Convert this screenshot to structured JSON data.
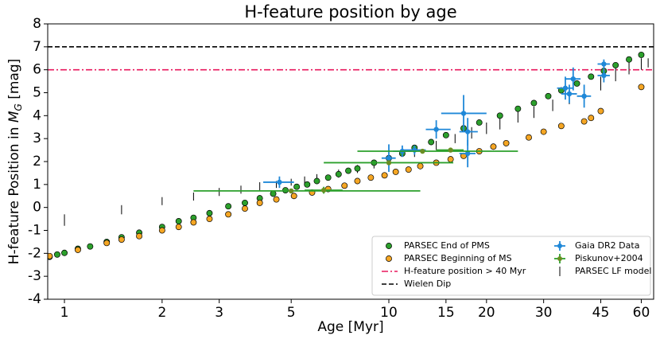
{
  "chart_data": {
    "type": "scatter",
    "title": "H-feature position by age",
    "xlabel": "Age [Myr]",
    "ylabel": {
      "text": "H-feature Position in ",
      "symbol": "M",
      "subscript": "G",
      "unit": " [mag]"
    },
    "xlog": true,
    "xlim": [
      0.888,
      65.5
    ],
    "ylim": [
      -4,
      8
    ],
    "xticks": [
      1,
      2,
      3,
      5,
      10,
      15,
      20,
      30,
      45,
      60
    ],
    "yticks": [
      -4,
      -3,
      -2,
      -1,
      0,
      1,
      2,
      3,
      4,
      5,
      6,
      7,
      8
    ],
    "legend": "lower right",
    "series": [
      {
        "name": "PARSEC End of PMS",
        "kind": "points",
        "color": "#2ca02c",
        "x": [
          0.9,
          0.95,
          1,
          1.1,
          1.2,
          1.35,
          1.5,
          1.7,
          2,
          2.25,
          2.5,
          2.8,
          3.2,
          3.6,
          4,
          4.4,
          4.8,
          5.2,
          5.6,
          6,
          6.5,
          7,
          7.5,
          8,
          9,
          10,
          11,
          12,
          13.5,
          15,
          17,
          19,
          22,
          25,
          28,
          31,
          34,
          38,
          42,
          46,
          50,
          55,
          60
        ],
        "values": [
          -2.15,
          -2.05,
          -1.98,
          -1.8,
          -1.7,
          -1.5,
          -1.3,
          -1.1,
          -0.85,
          -0.6,
          -0.45,
          -0.25,
          0.05,
          0.2,
          0.4,
          0.6,
          0.75,
          0.9,
          1.0,
          1.15,
          1.3,
          1.45,
          1.6,
          1.7,
          1.95,
          2.15,
          2.35,
          2.6,
          2.85,
          3.15,
          3.45,
          3.7,
          4.0,
          4.3,
          4.55,
          4.85,
          5.1,
          5.4,
          5.7,
          5.95,
          6.2,
          6.45,
          6.65
        ]
      },
      {
        "name": "PARSEC Beginning of MS",
        "kind": "points",
        "color": "#f5a623",
        "x": [
          0.9,
          1.1,
          1.35,
          1.5,
          1.7,
          2,
          2.25,
          2.5,
          2.8,
          3.2,
          3.6,
          4,
          4.5,
          5.1,
          5.8,
          6.5,
          7.3,
          8,
          8.8,
          9.7,
          10.5,
          11.5,
          12.5,
          14,
          15.5,
          17,
          19,
          21,
          23,
          27,
          30,
          34,
          40,
          42,
          45,
          60
        ],
        "values": [
          -2.12,
          -1.85,
          -1.55,
          -1.4,
          -1.25,
          -1.0,
          -0.85,
          -0.65,
          -0.5,
          -0.3,
          -0.05,
          0.2,
          0.35,
          0.5,
          0.65,
          0.8,
          0.95,
          1.15,
          1.3,
          1.4,
          1.55,
          1.65,
          1.8,
          1.95,
          2.1,
          2.25,
          2.45,
          2.65,
          2.8,
          3.05,
          3.3,
          3.55,
          3.75,
          3.9,
          4.2,
          5.25
        ]
      },
      {
        "name": "H-feature position > 40 Myr",
        "kind": "hline",
        "color": "#e8175d",
        "style": "dashdot",
        "value": 6
      },
      {
        "name": "Wielen Dip",
        "kind": "hline",
        "color": "#000000",
        "style": "dashed",
        "value": 7
      },
      {
        "name": "Gaia DR2 Data",
        "kind": "errorbar",
        "color": "#1f88d8",
        "x": [
          4.6,
          10,
          11,
          12,
          14,
          17,
          17.5,
          17.5,
          35,
          36,
          37,
          40,
          46,
          46
        ],
        "values": [
          1.1,
          2.15,
          2.45,
          2.5,
          3.4,
          4.1,
          2.35,
          3.3,
          5.2,
          4.95,
          5.6,
          4.85,
          6.25,
          5.75
        ],
        "xlow": [
          4.1,
          9.5,
          10.3,
          11,
          13,
          14.5,
          16.5,
          16.5,
          33,
          34,
          35,
          38,
          44,
          44
        ],
        "xhigh": [
          5.1,
          10.5,
          11.8,
          13,
          15.5,
          20,
          18.5,
          18.8,
          37,
          38,
          39,
          42,
          48,
          48
        ],
        "yerr": [
          0.25,
          0.6,
          0.25,
          0.2,
          0.4,
          0.8,
          0.6,
          0.6,
          0.5,
          0.4,
          0.5,
          0.5,
          0.2,
          0.3
        ]
      },
      {
        "name": "Piskunov+2004",
        "kind": "errorbar",
        "color": "#6b8e23",
        "barcolor": "#2ca02c",
        "x": [
          5,
          6.3,
          10,
          12.7,
          15.5
        ],
        "values": [
          0.72,
          0.75,
          1.95,
          2.45,
          2.5
        ],
        "xlow": [
          2.5,
          5.5,
          6.3,
          8,
          14
        ],
        "xhigh": [
          12.5,
          7.2,
          15.8,
          25,
          17
        ],
        "yerr": [
          0.1,
          0.15,
          0.1,
          0.1,
          0.1
        ]
      },
      {
        "name": "PARSEC LF model",
        "kind": "vlines",
        "color": "#000000",
        "x": [
          1,
          1.5,
          2,
          2.5,
          3,
          3.5,
          4,
          4.5,
          5,
          5.5,
          6,
          7,
          8,
          9,
          10,
          12,
          14,
          16,
          18,
          20,
          22,
          25,
          28,
          32,
          36,
          40,
          45,
          50,
          55,
          60,
          63
        ],
        "low": [
          -0.8,
          -0.3,
          0.1,
          0.3,
          0.5,
          0.6,
          0.75,
          0.85,
          0.95,
          1.05,
          1.1,
          1.3,
          1.5,
          1.7,
          1.85,
          2.2,
          2.5,
          2.8,
          3.0,
          3.2,
          3.4,
          3.7,
          3.9,
          4.2,
          4.5,
          4.8,
          5.1,
          5.5,
          5.8,
          6.0,
          6.1
        ],
        "values": [
          -0.3,
          0.1,
          0.45,
          0.65,
          0.85,
          0.95,
          1.1,
          1.15,
          1.25,
          1.35,
          1.45,
          1.65,
          1.85,
          2.05,
          2.2,
          2.6,
          2.9,
          3.2,
          3.5,
          3.7,
          3.9,
          4.2,
          4.4,
          4.7,
          5.0,
          5.3,
          5.7,
          6.1,
          6.4,
          6.5,
          6.5
        ]
      }
    ]
  }
}
